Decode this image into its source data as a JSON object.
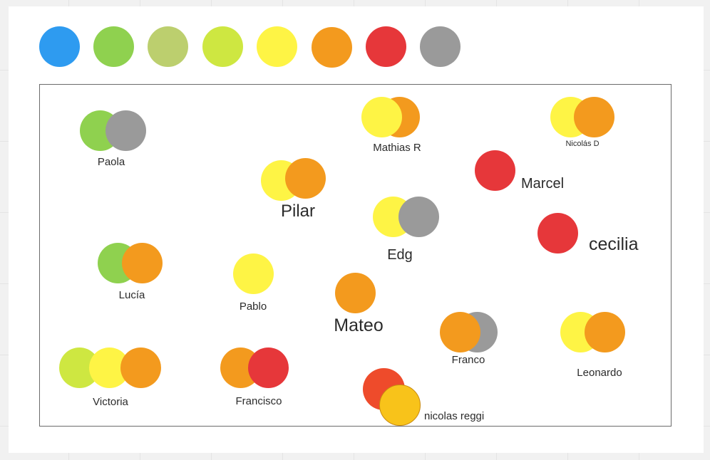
{
  "palette": {
    "colors": [
      "#2e9bf0",
      "#8fd14f",
      "#bccf6e",
      "#cee741",
      "#fef445",
      "#f39a1e",
      "#e6373a",
      "#9a9a9a"
    ]
  },
  "colors": {
    "green": "#8fd14f",
    "lime": "#cee741",
    "yellow": "#fef445",
    "orange": "#f39a1e",
    "red": "#e6373a",
    "gray": "#9a9a9a",
    "redorange": "#ee4b2b",
    "gold": "#f8c31a"
  },
  "people": {
    "paola": "Paola",
    "mathias": "Mathias R",
    "nicolas_d": "Nicolás D",
    "pilar": "Pilar",
    "marcel": "Marcel",
    "edg": "Edg",
    "cecilia": "cecilia",
    "lucia": "Lucía",
    "pablo": "Pablo",
    "mateo": "Mateo",
    "franco": "Franco",
    "leonardo": "Leonardo",
    "victoria": "Victoria",
    "francisco": "Francisco",
    "nicolas_reggi": "nicolas reggi"
  }
}
